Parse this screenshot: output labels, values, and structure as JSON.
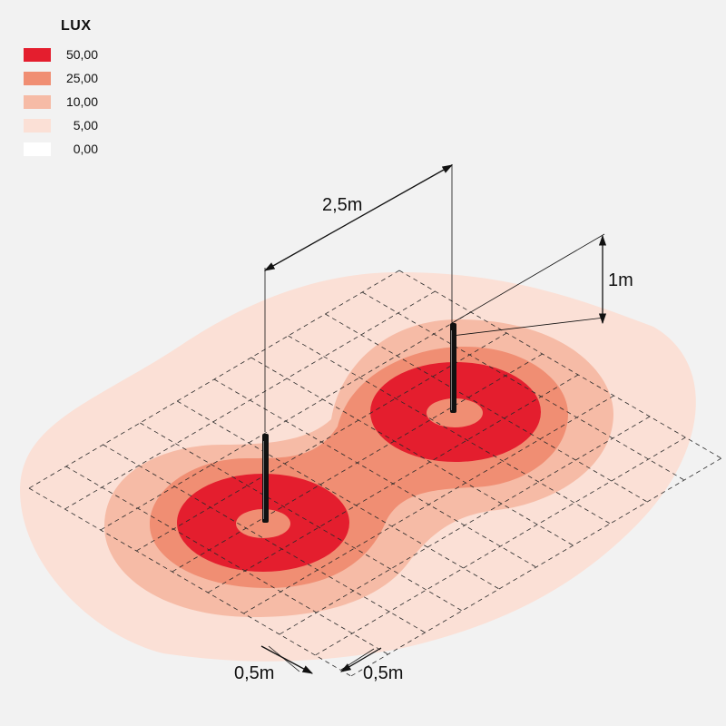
{
  "legend": {
    "title": "LUX",
    "items": [
      {
        "label": "50,00",
        "color": "#e41e2e"
      },
      {
        "label": "25,00",
        "color": "#f08e73"
      },
      {
        "label": "10,00",
        "color": "#f6bba6"
      },
      {
        "label": "5,00",
        "color": "#fbe0d6"
      },
      {
        "label": "0,00",
        "color": "#ffffff"
      }
    ]
  },
  "dimensions": {
    "pole_spacing": "2,5m",
    "pole_height": "1m",
    "grid_width_left": "0,5m",
    "grid_width_right": "0,5m"
  }
}
